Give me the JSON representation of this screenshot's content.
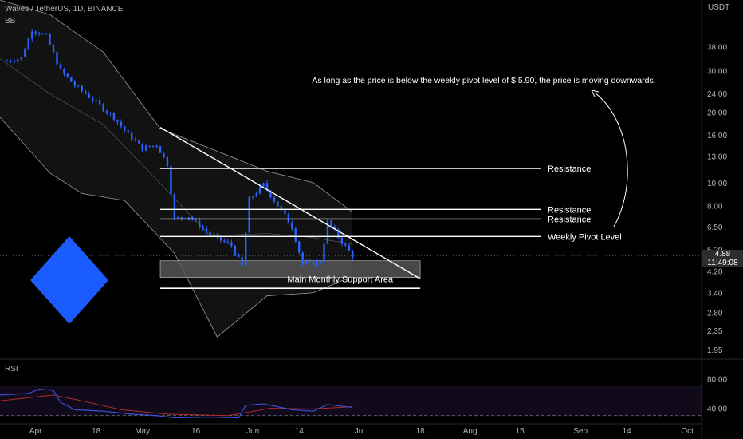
{
  "header": {
    "symbol_line": "Waves / TetherUS, 1D, BINANCE",
    "indicator": "BB",
    "axis_unit": "USDT"
  },
  "rsi_panel": {
    "label": "RSI"
  },
  "price_tag": {
    "price": "4.88",
    "countdown": "11:49:08"
  },
  "colors": {
    "background": "#000000",
    "candle": "#2962ff",
    "band": "#9a9a9a",
    "support_zone": "#5a5a5a",
    "rsi_line": "#3d4fd8",
    "rsi_ma": "#b02a2a",
    "logo": "#1a5cff"
  },
  "chart_data": {
    "type": "candlestick",
    "title": "Waves / TetherUS, 1D, BINANCE",
    "y_scale": "log",
    "ylim": [
      1.8,
      60
    ],
    "y_ticks": [
      38.0,
      30.0,
      24.0,
      20.0,
      16.0,
      13.0,
      10.0,
      8.0,
      6.5,
      5.2,
      4.2,
      3.4,
      2.8,
      2.35,
      1.95
    ],
    "x_ticks": [
      "Apr",
      "18",
      "May",
      "16",
      "Jun",
      "14",
      "Jul",
      "18",
      "Aug",
      "15",
      "Sep",
      "14",
      "Oct"
    ],
    "x_range": [
      "2022-03-22",
      "2022-10-05"
    ],
    "series": [
      {
        "name": "Waves / TetherUS",
        "close_path": [
          {
            "x": "2022-03-24",
            "y": 33.0
          },
          {
            "x": "2022-03-28",
            "y": 34.0
          },
          {
            "x": "2022-03-31",
            "y": 45.0
          },
          {
            "x": "2022-04-04",
            "y": 42.0
          },
          {
            "x": "2022-04-08",
            "y": 30.0
          },
          {
            "x": "2022-04-12",
            "y": 26.0
          },
          {
            "x": "2022-04-18",
            "y": 22.0
          },
          {
            "x": "2022-04-23",
            "y": 19.0
          },
          {
            "x": "2022-04-27",
            "y": 16.0
          },
          {
            "x": "2022-05-01",
            "y": 14.0
          },
          {
            "x": "2022-05-05",
            "y": 14.5
          },
          {
            "x": "2022-05-08",
            "y": 12.0
          },
          {
            "x": "2022-05-10",
            "y": 7.0
          },
          {
            "x": "2022-05-14",
            "y": 7.2
          },
          {
            "x": "2022-05-20",
            "y": 6.0
          },
          {
            "x": "2022-05-26",
            "y": 5.4
          },
          {
            "x": "2022-05-29",
            "y": 4.4
          },
          {
            "x": "2022-05-31",
            "y": 8.5
          },
          {
            "x": "2022-06-04",
            "y": 9.8
          },
          {
            "x": "2022-06-08",
            "y": 8.0
          },
          {
            "x": "2022-06-12",
            "y": 6.5
          },
          {
            "x": "2022-06-15",
            "y": 4.5
          },
          {
            "x": "2022-06-20",
            "y": 4.6
          },
          {
            "x": "2022-06-22",
            "y": 6.8
          },
          {
            "x": "2022-06-26",
            "y": 5.6
          },
          {
            "x": "2022-06-29",
            "y": 4.88
          }
        ]
      }
    ],
    "bollinger_bands": {
      "upper": [
        {
          "x": "2022-03-22",
          "y": 60
        },
        {
          "x": "2022-04-05",
          "y": 52
        },
        {
          "x": "2022-04-20",
          "y": 36
        },
        {
          "x": "2022-05-06",
          "y": 17
        },
        {
          "x": "2022-05-20",
          "y": 14
        },
        {
          "x": "2022-06-05",
          "y": 11.2
        },
        {
          "x": "2022-06-18",
          "y": 10
        },
        {
          "x": "2022-06-29",
          "y": 7.5
        }
      ],
      "lower": [
        {
          "x": "2022-03-22",
          "y": 19
        },
        {
          "x": "2022-04-05",
          "y": 11
        },
        {
          "x": "2022-04-14",
          "y": 9
        },
        {
          "x": "2022-04-26",
          "y": 8.4
        },
        {
          "x": "2022-05-10",
          "y": 5.0
        },
        {
          "x": "2022-05-22",
          "y": 2.2
        },
        {
          "x": "2022-06-05",
          "y": 3.3
        },
        {
          "x": "2022-06-18",
          "y": 3.4
        },
        {
          "x": "2022-06-29",
          "y": 4.0
        }
      ]
    },
    "levels": [
      {
        "label": "Resistance",
        "y": 11.5
      },
      {
        "label": "Resistance",
        "y": 7.7
      },
      {
        "label": "Resistance",
        "y": 7.0
      },
      {
        "label": "Weekly Pivot Level",
        "y": 5.9
      }
    ],
    "support_zone": {
      "label": "Main Monthly Support Area",
      "y_top": 4.65,
      "y_bottom": 3.95,
      "y_line": 3.55,
      "x_start": "2022-05-06",
      "x_end": "2022-07-18"
    },
    "trendline": {
      "from": {
        "x": "2022-05-06",
        "y": 17.2
      },
      "to": {
        "x": "2022-07-18",
        "y": 3.9
      }
    },
    "annotation": "As long as the price is below the weekly pivot level of $ 5.90, the price is moving downwards.",
    "rsi": {
      "ylim": [
        20,
        100
      ],
      "y_ticks": [
        80.0,
        40.0
      ],
      "band": [
        70,
        30
      ],
      "values": [
        {
          "x": "2022-03-22",
          "y": 58
        },
        {
          "x": "2022-03-30",
          "y": 60
        },
        {
          "x": "2022-04-02",
          "y": 66
        },
        {
          "x": "2022-04-06",
          "y": 64
        },
        {
          "x": "2022-04-08",
          "y": 48
        },
        {
          "x": "2022-04-12",
          "y": 38
        },
        {
          "x": "2022-04-20",
          "y": 36
        },
        {
          "x": "2022-04-28",
          "y": 32
        },
        {
          "x": "2022-05-05",
          "y": 30
        },
        {
          "x": "2022-05-10",
          "y": 27
        },
        {
          "x": "2022-05-20",
          "y": 28
        },
        {
          "x": "2022-05-28",
          "y": 27
        },
        {
          "x": "2022-05-30",
          "y": 44
        },
        {
          "x": "2022-06-04",
          "y": 46
        },
        {
          "x": "2022-06-12",
          "y": 38
        },
        {
          "x": "2022-06-18",
          "y": 36
        },
        {
          "x": "2022-06-22",
          "y": 45
        },
        {
          "x": "2022-06-29",
          "y": 41
        }
      ],
      "ma": [
        {
          "x": "2022-03-22",
          "y": 50
        },
        {
          "x": "2022-04-06",
          "y": 58
        },
        {
          "x": "2022-04-14",
          "y": 50
        },
        {
          "x": "2022-04-25",
          "y": 38
        },
        {
          "x": "2022-05-08",
          "y": 32
        },
        {
          "x": "2022-05-25",
          "y": 30
        },
        {
          "x": "2022-06-06",
          "y": 40
        },
        {
          "x": "2022-06-18",
          "y": 39
        },
        {
          "x": "2022-06-29",
          "y": 42
        }
      ]
    }
  }
}
